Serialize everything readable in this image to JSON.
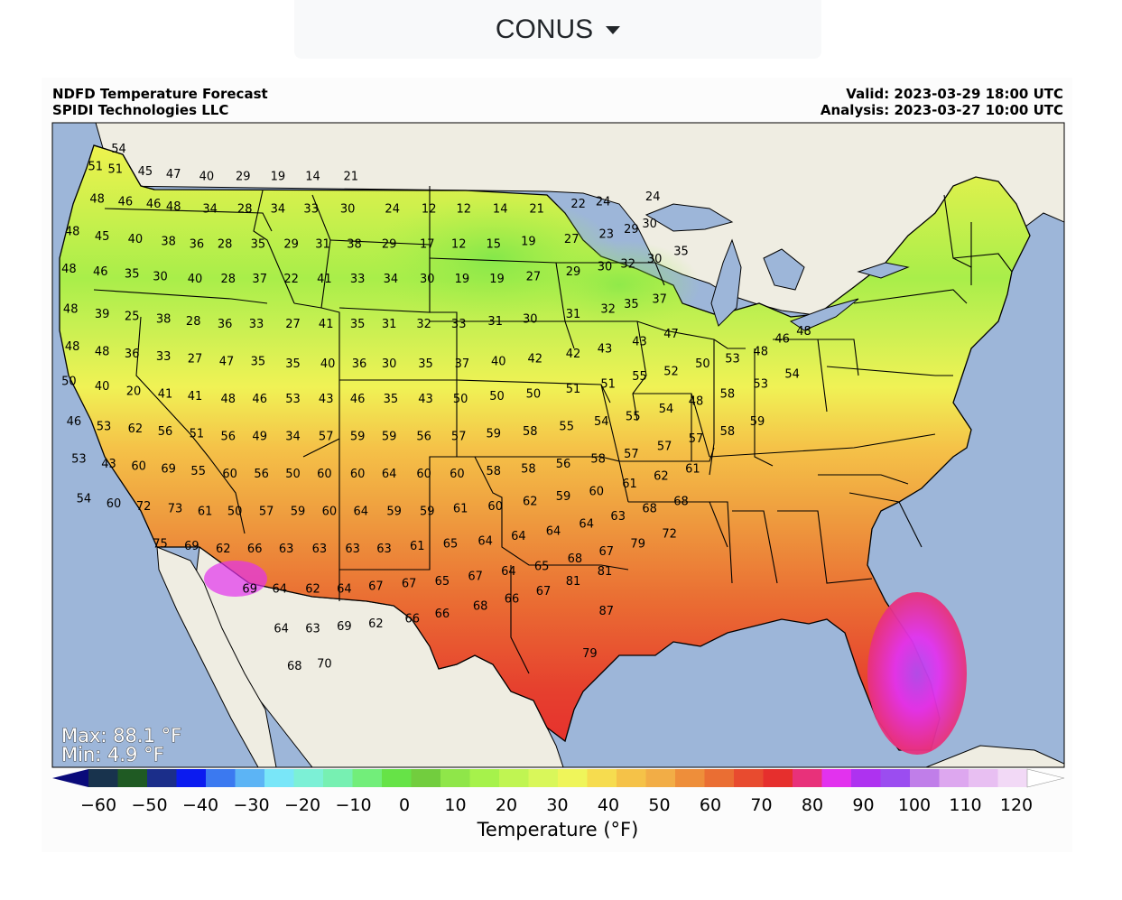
{
  "region_selector": {
    "label": "CONUS"
  },
  "header": {
    "title": "NDFD Temperature Forecast",
    "org": "SPIDI Technologies LLC",
    "valid": "Valid: 2023-03-29 18:00 UTC",
    "analysis": "Analysis: 2023-03-27 10:00 UTC"
  },
  "stats": {
    "max": "Max: 88.1 °F",
    "min": "Min: 4.9 °F"
  },
  "colorbar": {
    "label": "Temperature (°F)",
    "ticks": [
      "−60",
      "−50",
      "−40",
      "−30",
      "−20",
      "−10",
      "0",
      "10",
      "20",
      "30",
      "40",
      "50",
      "60",
      "70",
      "80",
      "90",
      "100",
      "110",
      "120"
    ],
    "colors": [
      "#0a0a7a",
      "#18334d",
      "#1f5a23",
      "#1b2e8a",
      "#0b1bf0",
      "#3b79f0",
      "#5cb4f5",
      "#79e6f8",
      "#7cf0d6",
      "#77f0b2",
      "#72ee7a",
      "#66e347",
      "#72cd3e",
      "#8fe649",
      "#a6f24b",
      "#c0f552",
      "#d9f75a",
      "#eff55a",
      "#f6dc4f",
      "#f5c248",
      "#f2ad46",
      "#ee8e3a",
      "#ea6e33",
      "#e84b2f",
      "#e62f2d",
      "#e8317a",
      "#e232ee",
      "#ae32f0",
      "#9b4df0",
      "#c07ee9",
      "#dda7ef",
      "#e8bff2",
      "#f2d9f6",
      "#ffffff"
    ]
  },
  "labels": [
    {
      "v": "54",
      "lon": -123.0,
      "lat": 48.6
    },
    {
      "v": "51",
      "lon": -124.4,
      "lat": 47.9
    },
    {
      "v": "51",
      "lon": -123.2,
      "lat": 47.8
    },
    {
      "v": "45",
      "lon": -121.4,
      "lat": 47.7
    },
    {
      "v": "47",
      "lon": -119.7,
      "lat": 47.6
    },
    {
      "v": "40",
      "lon": -117.7,
      "lat": 47.5
    },
    {
      "v": "29",
      "lon": -115.5,
      "lat": 47.5
    },
    {
      "v": "19",
      "lon": -113.4,
      "lat": 47.5
    },
    {
      "v": "14",
      "lon": -111.3,
      "lat": 47.5
    },
    {
      "v": "21",
      "lon": -109.0,
      "lat": 47.5
    },
    {
      "v": "48",
      "lon": -124.3,
      "lat": 46.6
    },
    {
      "v": "46",
      "lon": -122.6,
      "lat": 46.5
    },
    {
      "v": "46",
      "lon": -120.9,
      "lat": 46.4
    },
    {
      "v": "48",
      "lon": -119.7,
      "lat": 46.3
    },
    {
      "v": "34",
      "lon": -117.5,
      "lat": 46.2
    },
    {
      "v": "28",
      "lon": -115.4,
      "lat": 46.2
    },
    {
      "v": "34",
      "lon": -113.4,
      "lat": 46.2
    },
    {
      "v": "33",
      "lon": -111.4,
      "lat": 46.2
    },
    {
      "v": "30",
      "lon": -109.2,
      "lat": 46.2
    },
    {
      "v": "24",
      "lon": -106.5,
      "lat": 46.2
    },
    {
      "v": "12",
      "lon": -104.3,
      "lat": 46.2
    },
    {
      "v": "12",
      "lon": -102.2,
      "lat": 46.2
    },
    {
      "v": "14",
      "lon": -100.0,
      "lat": 46.2
    },
    {
      "v": "21",
      "lon": -97.8,
      "lat": 46.2
    },
    {
      "v": "22",
      "lon": -95.3,
      "lat": 46.4
    },
    {
      "v": "24",
      "lon": -93.8,
      "lat": 46.5
    },
    {
      "v": "24",
      "lon": -90.8,
      "lat": 46.7
    },
    {
      "v": "48",
      "lon": -125.8,
      "lat": 45.3
    },
    {
      "v": "45",
      "lon": -124.0,
      "lat": 45.1
    },
    {
      "v": "40",
      "lon": -122.0,
      "lat": 45.0
    },
    {
      "v": "38",
      "lon": -120.0,
      "lat": 44.9
    },
    {
      "v": "36",
      "lon": -118.3,
      "lat": 44.8
    },
    {
      "v": "28",
      "lon": -116.6,
      "lat": 44.8
    },
    {
      "v": "35",
      "lon": -114.6,
      "lat": 44.8
    },
    {
      "v": "29",
      "lon": -112.6,
      "lat": 44.8
    },
    {
      "v": "31",
      "lon": -110.7,
      "lat": 44.8
    },
    {
      "v": "38",
      "lon": -108.8,
      "lat": 44.8
    },
    {
      "v": "29",
      "lon": -106.7,
      "lat": 44.8
    },
    {
      "v": "17",
      "lon": -104.4,
      "lat": 44.8
    },
    {
      "v": "12",
      "lon": -102.5,
      "lat": 44.8
    },
    {
      "v": "15",
      "lon": -100.4,
      "lat": 44.8
    },
    {
      "v": "19",
      "lon": -98.3,
      "lat": 44.9
    },
    {
      "v": "27",
      "lon": -95.7,
      "lat": 45.0
    },
    {
      "v": "23",
      "lon": -93.6,
      "lat": 45.2
    },
    {
      "v": "29",
      "lon": -92.1,
      "lat": 45.4
    },
    {
      "v": "30",
      "lon": -91.0,
      "lat": 45.6
    },
    {
      "v": "48",
      "lon": -126.0,
      "lat": 43.8
    },
    {
      "v": "46",
      "lon": -124.1,
      "lat": 43.7
    },
    {
      "v": "35",
      "lon": -122.2,
      "lat": 43.6
    },
    {
      "v": "30",
      "lon": -120.5,
      "lat": 43.5
    },
    {
      "v": "40",
      "lon": -118.4,
      "lat": 43.4
    },
    {
      "v": "28",
      "lon": -116.4,
      "lat": 43.4
    },
    {
      "v": "37",
      "lon": -114.5,
      "lat": 43.4
    },
    {
      "v": "22",
      "lon": -112.6,
      "lat": 43.4
    },
    {
      "v": "41",
      "lon": -110.6,
      "lat": 43.4
    },
    {
      "v": "33",
      "lon": -108.6,
      "lat": 43.4
    },
    {
      "v": "34",
      "lon": -106.6,
      "lat": 43.4
    },
    {
      "v": "30",
      "lon": -104.4,
      "lat": 43.4
    },
    {
      "v": "19",
      "lon": -102.3,
      "lat": 43.4
    },
    {
      "v": "19",
      "lon": -100.2,
      "lat": 43.4
    },
    {
      "v": "27",
      "lon": -98.0,
      "lat": 43.5
    },
    {
      "v": "29",
      "lon": -95.6,
      "lat": 43.7
    },
    {
      "v": "30",
      "lon": -93.7,
      "lat": 43.9
    },
    {
      "v": "32",
      "lon": -92.3,
      "lat": 44.0
    },
    {
      "v": "30",
      "lon": -90.7,
      "lat": 44.2
    },
    {
      "v": "35",
      "lon": -89.1,
      "lat": 44.5
    },
    {
      "v": "48",
      "lon": -125.9,
      "lat": 42.2
    },
    {
      "v": "39",
      "lon": -124.0,
      "lat": 42.0
    },
    {
      "v": "25",
      "lon": -122.2,
      "lat": 41.9
    },
    {
      "v": "38",
      "lon": -120.3,
      "lat": 41.8
    },
    {
      "v": "28",
      "lon": -118.5,
      "lat": 41.7
    },
    {
      "v": "36",
      "lon": -116.6,
      "lat": 41.6
    },
    {
      "v": "33",
      "lon": -114.7,
      "lat": 41.6
    },
    {
      "v": "27",
      "lon": -112.5,
      "lat": 41.6
    },
    {
      "v": "41",
      "lon": -110.5,
      "lat": 41.6
    },
    {
      "v": "35",
      "lon": -108.6,
      "lat": 41.6
    },
    {
      "v": "31",
      "lon": -106.7,
      "lat": 41.6
    },
    {
      "v": "32",
      "lon": -104.6,
      "lat": 41.6
    },
    {
      "v": "33",
      "lon": -102.5,
      "lat": 41.6
    },
    {
      "v": "31",
      "lon": -100.3,
      "lat": 41.7
    },
    {
      "v": "30",
      "lon": -98.2,
      "lat": 41.8
    },
    {
      "v": "31",
      "lon": -95.6,
      "lat": 42.0
    },
    {
      "v": "32",
      "lon": -93.5,
      "lat": 42.2
    },
    {
      "v": "35",
      "lon": -92.1,
      "lat": 42.4
    },
    {
      "v": "37",
      "lon": -90.4,
      "lat": 42.6
    },
    {
      "v": "48",
      "lon": -125.8,
      "lat": 40.7
    },
    {
      "v": "48",
      "lon": -124.0,
      "lat": 40.5
    },
    {
      "v": "36",
      "lon": -122.2,
      "lat": 40.4
    },
    {
      "v": "33",
      "lon": -120.3,
      "lat": 40.3
    },
    {
      "v": "27",
      "lon": -118.4,
      "lat": 40.2
    },
    {
      "v": "47",
      "lon": -116.5,
      "lat": 40.1
    },
    {
      "v": "35",
      "lon": -114.6,
      "lat": 40.1
    },
    {
      "v": "35",
      "lon": -112.5,
      "lat": 40.0
    },
    {
      "v": "40",
      "lon": -110.4,
      "lat": 40.0
    },
    {
      "v": "36",
      "lon": -108.5,
      "lat": 40.0
    },
    {
      "v": "30",
      "lon": -106.7,
      "lat": 40.0
    },
    {
      "v": "35",
      "lon": -104.5,
      "lat": 40.0
    },
    {
      "v": "37",
      "lon": -102.3,
      "lat": 40.0
    },
    {
      "v": "40",
      "lon": -100.1,
      "lat": 40.1
    },
    {
      "v": "42",
      "lon": -97.9,
      "lat": 40.2
    },
    {
      "v": "42",
      "lon": -95.6,
      "lat": 40.4
    },
    {
      "v": "43",
      "lon": -93.7,
      "lat": 40.6
    },
    {
      "v": "43",
      "lon": -91.6,
      "lat": 40.9
    },
    {
      "v": "47",
      "lon": -89.7,
      "lat": 41.2
    },
    {
      "v": "50",
      "lon": -126.0,
      "lat": 39.3
    },
    {
      "v": "40",
      "lon": -124.0,
      "lat": 39.1
    },
    {
      "v": "20",
      "lon": -122.1,
      "lat": 38.9
    },
    {
      "v": "41",
      "lon": -120.2,
      "lat": 38.8
    },
    {
      "v": "41",
      "lon": -118.4,
      "lat": 38.7
    },
    {
      "v": "48",
      "lon": -116.4,
      "lat": 38.6
    },
    {
      "v": "46",
      "lon": -114.5,
      "lat": 38.6
    },
    {
      "v": "53",
      "lon": -112.5,
      "lat": 38.6
    },
    {
      "v": "43",
      "lon": -110.5,
      "lat": 38.6
    },
    {
      "v": "46",
      "lon": -108.6,
      "lat": 38.6
    },
    {
      "v": "35",
      "lon": -106.6,
      "lat": 38.6
    },
    {
      "v": "43",
      "lon": -104.5,
      "lat": 38.6
    },
    {
      "v": "50",
      "lon": -102.4,
      "lat": 38.6
    },
    {
      "v": "50",
      "lon": -100.2,
      "lat": 38.7
    },
    {
      "v": "50",
      "lon": -98.0,
      "lat": 38.8
    },
    {
      "v": "51",
      "lon": -95.6,
      "lat": 39.0
    },
    {
      "v": "51",
      "lon": -93.5,
      "lat": 39.2
    },
    {
      "v": "55",
      "lon": -91.6,
      "lat": 39.5
    },
    {
      "v": "52",
      "lon": -89.7,
      "lat": 39.7
    },
    {
      "v": "50",
      "lon": -87.8,
      "lat": 40.0
    },
    {
      "v": "53",
      "lon": -86.0,
      "lat": 40.2
    },
    {
      "v": "48",
      "lon": -84.3,
      "lat": 40.5
    },
    {
      "v": "46",
      "lon": -83.0,
      "lat": 41.0
    },
    {
      "v": "48",
      "lon": -81.7,
      "lat": 41.3
    },
    {
      "v": "46",
      "lon": -125.7,
      "lat": 37.7
    },
    {
      "v": "53",
      "lon": -123.9,
      "lat": 37.5
    },
    {
      "v": "62",
      "lon": -122.0,
      "lat": 37.4
    },
    {
      "v": "56",
      "lon": -120.2,
      "lat": 37.3
    },
    {
      "v": "51",
      "lon": -118.3,
      "lat": 37.2
    },
    {
      "v": "56",
      "lon": -116.4,
      "lat": 37.1
    },
    {
      "v": "49",
      "lon": -114.5,
      "lat": 37.1
    },
    {
      "v": "34",
      "lon": -112.5,
      "lat": 37.1
    },
    {
      "v": "57",
      "lon": -110.5,
      "lat": 37.1
    },
    {
      "v": "59",
      "lon": -108.6,
      "lat": 37.1
    },
    {
      "v": "59",
      "lon": -106.7,
      "lat": 37.1
    },
    {
      "v": "56",
      "lon": -104.6,
      "lat": 37.1
    },
    {
      "v": "57",
      "lon": -102.5,
      "lat": 37.1
    },
    {
      "v": "59",
      "lon": -100.4,
      "lat": 37.2
    },
    {
      "v": "58",
      "lon": -98.2,
      "lat": 37.3
    },
    {
      "v": "55",
      "lon": -96.0,
      "lat": 37.5
    },
    {
      "v": "54",
      "lon": -93.9,
      "lat": 37.7
    },
    {
      "v": "55",
      "lon": -92.0,
      "lat": 37.9
    },
    {
      "v": "54",
      "lon": -90.0,
      "lat": 38.2
    },
    {
      "v": "48",
      "lon": -88.2,
      "lat": 38.5
    },
    {
      "v": "58",
      "lon": -86.3,
      "lat": 38.8
    },
    {
      "v": "53",
      "lon": -84.3,
      "lat": 39.2
    },
    {
      "v": "54",
      "lon": -82.4,
      "lat": 39.6
    },
    {
      "v": "53",
      "lon": -125.4,
      "lat": 36.2
    },
    {
      "v": "43",
      "lon": -123.6,
      "lat": 36.0
    },
    {
      "v": "60",
      "lon": -121.8,
      "lat": 35.9
    },
    {
      "v": "69",
      "lon": -120.0,
      "lat": 35.8
    },
    {
      "v": "55",
      "lon": -118.2,
      "lat": 35.7
    },
    {
      "v": "60",
      "lon": -116.3,
      "lat": 35.6
    },
    {
      "v": "56",
      "lon": -114.4,
      "lat": 35.6
    },
    {
      "v": "50",
      "lon": -112.5,
      "lat": 35.6
    },
    {
      "v": "60",
      "lon": -110.6,
      "lat": 35.6
    },
    {
      "v": "60",
      "lon": -108.6,
      "lat": 35.6
    },
    {
      "v": "64",
      "lon": -106.7,
      "lat": 35.6
    },
    {
      "v": "60",
      "lon": -104.6,
      "lat": 35.6
    },
    {
      "v": "60",
      "lon": -102.6,
      "lat": 35.6
    },
    {
      "v": "58",
      "lon": -100.4,
      "lat": 35.7
    },
    {
      "v": "58",
      "lon": -98.3,
      "lat": 35.8
    },
    {
      "v": "56",
      "lon": -96.2,
      "lat": 36.0
    },
    {
      "v": "58",
      "lon": -94.1,
      "lat": 36.2
    },
    {
      "v": "57",
      "lon": -92.1,
      "lat": 36.4
    },
    {
      "v": "57",
      "lon": -90.1,
      "lat": 36.7
    },
    {
      "v": "57",
      "lon": -88.2,
      "lat": 37.0
    },
    {
      "v": "58",
      "lon": -86.3,
      "lat": 37.3
    },
    {
      "v": "59",
      "lon": -84.5,
      "lat": 37.7
    },
    {
      "v": "54",
      "lon": -125.1,
      "lat": 34.6
    },
    {
      "v": "60",
      "lon": -123.3,
      "lat": 34.4
    },
    {
      "v": "72",
      "lon": -121.5,
      "lat": 34.3
    },
    {
      "v": "73",
      "lon": -119.6,
      "lat": 34.2
    },
    {
      "v": "61",
      "lon": -117.8,
      "lat": 34.1
    },
    {
      "v": "50",
      "lon": -116.0,
      "lat": 34.1
    },
    {
      "v": "57",
      "lon": -114.1,
      "lat": 34.1
    },
    {
      "v": "59",
      "lon": -112.2,
      "lat": 34.1
    },
    {
      "v": "60",
      "lon": -110.3,
      "lat": 34.1
    },
    {
      "v": "64",
      "lon": -108.4,
      "lat": 34.1
    },
    {
      "v": "59",
      "lon": -106.4,
      "lat": 34.1
    },
    {
      "v": "59",
      "lon": -104.4,
      "lat": 34.1
    },
    {
      "v": "61",
      "lon": -102.4,
      "lat": 34.2
    },
    {
      "v": "60",
      "lon": -100.3,
      "lat": 34.3
    },
    {
      "v": "62",
      "lon": -98.2,
      "lat": 34.5
    },
    {
      "v": "59",
      "lon": -96.2,
      "lat": 34.7
    },
    {
      "v": "60",
      "lon": -94.2,
      "lat": 34.9
    },
    {
      "v": "61",
      "lon": -92.2,
      "lat": 35.2
    },
    {
      "v": "62",
      "lon": -90.3,
      "lat": 35.5
    },
    {
      "v": "61",
      "lon": -88.4,
      "lat": 35.8
    },
    {
      "v": "75",
      "lon": -120.5,
      "lat": 32.8
    },
    {
      "v": "69",
      "lon": -118.6,
      "lat": 32.7
    },
    {
      "v": "62",
      "lon": -116.7,
      "lat": 32.6
    },
    {
      "v": "66",
      "lon": -114.8,
      "lat": 32.6
    },
    {
      "v": "63",
      "lon": -112.9,
      "lat": 32.6
    },
    {
      "v": "63",
      "lon": -110.9,
      "lat": 32.6
    },
    {
      "v": "63",
      "lon": -108.9,
      "lat": 32.6
    },
    {
      "v": "63",
      "lon": -107.0,
      "lat": 32.6
    },
    {
      "v": "61",
      "lon": -105.0,
      "lat": 32.7
    },
    {
      "v": "65",
      "lon": -103.0,
      "lat": 32.8
    },
    {
      "v": "64",
      "lon": -100.9,
      "lat": 32.9
    },
    {
      "v": "64",
      "lon": -98.9,
      "lat": 33.1
    },
    {
      "v": "64",
      "lon": -96.8,
      "lat": 33.3
    },
    {
      "v": "64",
      "lon": -94.8,
      "lat": 33.6
    },
    {
      "v": "63",
      "lon": -92.9,
      "lat": 33.9
    },
    {
      "v": "68",
      "lon": -91.0,
      "lat": 34.2
    },
    {
      "v": "68",
      "lon": -89.1,
      "lat": 34.5
    },
    {
      "v": "69",
      "lon": -115.1,
      "lat": 31.0
    },
    {
      "v": "64",
      "lon": -113.3,
      "lat": 31.0
    },
    {
      "v": "62",
      "lon": -111.3,
      "lat": 31.0
    },
    {
      "v": "64",
      "lon": -109.4,
      "lat": 31.0
    },
    {
      "v": "67",
      "lon": -107.5,
      "lat": 31.1
    },
    {
      "v": "67",
      "lon": -105.5,
      "lat": 31.2
    },
    {
      "v": "65",
      "lon": -103.5,
      "lat": 31.3
    },
    {
      "v": "67",
      "lon": -101.5,
      "lat": 31.5
    },
    {
      "v": "64",
      "lon": -99.5,
      "lat": 31.7
    },
    {
      "v": "65",
      "lon": -97.5,
      "lat": 31.9
    },
    {
      "v": "68",
      "lon": -95.5,
      "lat": 32.2
    },
    {
      "v": "67",
      "lon": -93.6,
      "lat": 32.5
    },
    {
      "v": "79",
      "lon": -91.7,
      "lat": 32.8
    },
    {
      "v": "72",
      "lon": -89.8,
      "lat": 33.2
    },
    {
      "v": "64",
      "lon": -113.2,
      "lat": 29.4
    },
    {
      "v": "63",
      "lon": -111.3,
      "lat": 29.4
    },
    {
      "v": "69",
      "lon": -109.4,
      "lat": 29.5
    },
    {
      "v": "62",
      "lon": -107.5,
      "lat": 29.6
    },
    {
      "v": "66",
      "lon": -105.3,
      "lat": 29.8
    },
    {
      "v": "66",
      "lon": -103.5,
      "lat": 30.0
    },
    {
      "v": "68",
      "lon": -101.2,
      "lat": 30.3
    },
    {
      "v": "66",
      "lon": -99.3,
      "lat": 30.6
    },
    {
      "v": "67",
      "lon": -97.4,
      "lat": 30.9
    },
    {
      "v": "81",
      "lon": -95.6,
      "lat": 31.3
    },
    {
      "v": "81",
      "lon": -93.7,
      "lat": 31.7
    },
    {
      "v": "68",
      "lon": -112.4,
      "lat": 27.9
    },
    {
      "v": "70",
      "lon": -110.6,
      "lat": 28.0
    },
    {
      "v": "87",
      "lon": -93.6,
      "lat": 30.1
    },
    {
      "v": "79",
      "lon": -94.6,
      "lat": 28.4
    }
  ]
}
